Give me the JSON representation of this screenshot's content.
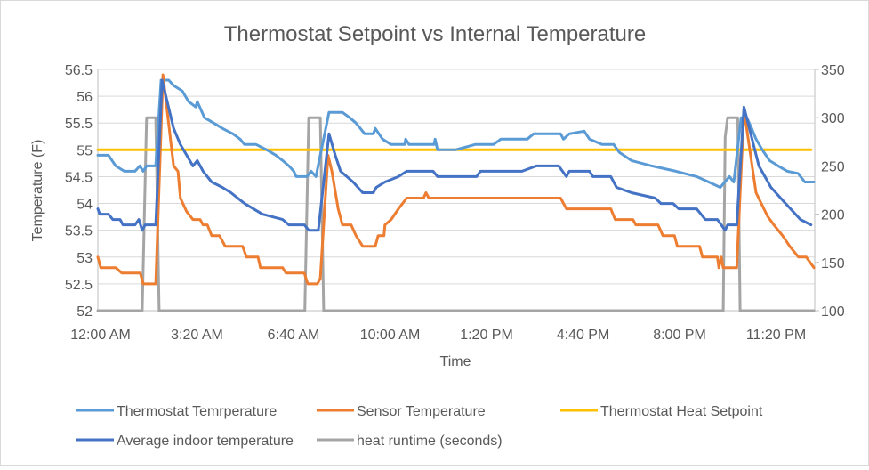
{
  "chart_data": {
    "type": "line",
    "title": "Thermostat Setpoint vs Internal Temperature",
    "xlabel": "Time",
    "ylabel": "Temperature (F)",
    "ylim": [
      52,
      56.5
    ],
    "y2lim": [
      100,
      350
    ],
    "yticks": [
      "52",
      "52.5",
      "53",
      "53.5",
      "54",
      "54.5",
      "55",
      "55.5",
      "56",
      "56.5"
    ],
    "y2ticks": [
      "100",
      "150",
      "200",
      "250",
      "300",
      "350"
    ],
    "xticks": [
      "12:00 AM",
      "3:20 AM",
      "6:40 AM",
      "10:00 AM",
      "1:20 PM",
      "4:40 PM",
      "8:00 PM",
      "11:20 PM"
    ],
    "grid": true,
    "legend_position": "bottom",
    "series": [
      {
        "name": "Thermostat Temrperature",
        "color": "#5B9BD5",
        "axis": "left",
        "points": [
          [
            "00:00",
            54.9
          ],
          [
            "00:22",
            54.9
          ],
          [
            "00:37",
            54.7
          ],
          [
            "00:55",
            54.6
          ],
          [
            "01:17",
            54.6
          ],
          [
            "01:27",
            54.7
          ],
          [
            "01:34",
            54.6
          ],
          [
            "01:41",
            54.7
          ],
          [
            "02:00",
            54.7
          ],
          [
            "02:11",
            56.3
          ],
          [
            "02:27",
            56.3
          ],
          [
            "02:37",
            56.2
          ],
          [
            "02:55",
            56.1
          ],
          [
            "03:08",
            55.9
          ],
          [
            "03:23",
            55.8
          ],
          [
            "03:26",
            55.9
          ],
          [
            "03:41",
            55.6
          ],
          [
            "04:00",
            55.5
          ],
          [
            "04:18",
            55.4
          ],
          [
            "04:40",
            55.3
          ],
          [
            "04:55",
            55.2
          ],
          [
            "05:04",
            55.1
          ],
          [
            "05:28",
            55.1
          ],
          [
            "05:50",
            55.0
          ],
          [
            "06:09",
            54.9
          ],
          [
            "06:23",
            54.8
          ],
          [
            "06:36",
            54.7
          ],
          [
            "06:46",
            54.6
          ],
          [
            "06:51",
            54.5
          ],
          [
            "07:13",
            54.5
          ],
          [
            "07:22",
            54.6
          ],
          [
            "07:32",
            54.5
          ],
          [
            "07:59",
            55.7
          ],
          [
            "08:27",
            55.7
          ],
          [
            "08:42",
            55.6
          ],
          [
            "08:55",
            55.5
          ],
          [
            "09:04",
            55.4
          ],
          [
            "09:13",
            55.3
          ],
          [
            "09:31",
            55.3
          ],
          [
            "09:35",
            55.4
          ],
          [
            "09:50",
            55.2
          ],
          [
            "10:08",
            55.1
          ],
          [
            "10:36",
            55.1
          ],
          [
            "10:38",
            55.2
          ],
          [
            "10:45",
            55.1
          ],
          [
            "11:37",
            55.1
          ],
          [
            "11:39",
            55.2
          ],
          [
            "11:44",
            55.0
          ],
          [
            "12:21",
            55.0
          ],
          [
            "13:02",
            55.1
          ],
          [
            "13:40",
            55.1
          ],
          [
            "13:55",
            55.2
          ],
          [
            "14:50",
            55.2
          ],
          [
            "15:03",
            55.3
          ],
          [
            "15:59",
            55.3
          ],
          [
            "16:05",
            55.2
          ],
          [
            "16:17",
            55.3
          ],
          [
            "16:48",
            55.35
          ],
          [
            "16:59",
            55.2
          ],
          [
            "17:25",
            55.1
          ],
          [
            "17:49",
            55.1
          ],
          [
            "18:01",
            54.95
          ],
          [
            "18:26",
            54.8
          ],
          [
            "19:08",
            54.7
          ],
          [
            "19:58",
            54.6
          ],
          [
            "20:41",
            54.5
          ],
          [
            "21:06",
            54.4
          ],
          [
            "21:30",
            54.3
          ],
          [
            "21:49",
            54.5
          ],
          [
            "21:58",
            54.4
          ],
          [
            "22:13",
            55.6
          ],
          [
            "22:25",
            55.6
          ],
          [
            "22:35",
            55.4
          ],
          [
            "22:44",
            55.2
          ],
          [
            "22:57",
            55.0
          ],
          [
            "23:12",
            54.8
          ],
          [
            "23:30",
            54.7
          ],
          [
            "23:49",
            54.6
          ],
          [
            "24:11",
            54.56
          ],
          [
            "24:25",
            54.4
          ],
          [
            "24:44",
            54.4
          ]
        ]
      },
      {
        "name": "Sensor Temperature",
        "color": "#ED7D31",
        "axis": "left",
        "points": [
          [
            "00:00",
            53.0
          ],
          [
            "00:06",
            52.8
          ],
          [
            "00:37",
            52.8
          ],
          [
            "00:50",
            52.7
          ],
          [
            "01:28",
            52.7
          ],
          [
            "01:34",
            52.5
          ],
          [
            "02:00",
            52.5
          ],
          [
            "02:15",
            56.4
          ],
          [
            "02:37",
            54.7
          ],
          [
            "02:46",
            54.6
          ],
          [
            "02:51",
            54.1
          ],
          [
            "03:04",
            53.85
          ],
          [
            "03:17",
            53.7
          ],
          [
            "03:32",
            53.7
          ],
          [
            "03:38",
            53.6
          ],
          [
            "03:47",
            53.6
          ],
          [
            "03:56",
            53.4
          ],
          [
            "04:12",
            53.4
          ],
          [
            "04:24",
            53.2
          ],
          [
            "05:00",
            53.2
          ],
          [
            "05:08",
            53.0
          ],
          [
            "05:32",
            53.0
          ],
          [
            "05:37",
            52.8
          ],
          [
            "06:23",
            52.8
          ],
          [
            "06:30",
            52.7
          ],
          [
            "07:08",
            52.7
          ],
          [
            "07:15",
            52.5
          ],
          [
            "07:35",
            52.5
          ],
          [
            "07:41",
            52.6
          ],
          [
            "07:57",
            54.9
          ],
          [
            "08:05",
            54.6
          ],
          [
            "08:18",
            53.9
          ],
          [
            "08:27",
            53.6
          ],
          [
            "08:45",
            53.6
          ],
          [
            "08:55",
            53.4
          ],
          [
            "09:09",
            53.2
          ],
          [
            "09:35",
            53.2
          ],
          [
            "09:41",
            53.4
          ],
          [
            "09:53",
            53.4
          ],
          [
            "09:55",
            53.6
          ],
          [
            "10:08",
            53.7
          ],
          [
            "10:23",
            53.9
          ],
          [
            "10:40",
            54.1
          ],
          [
            "11:15",
            54.1
          ],
          [
            "11:20",
            54.2
          ],
          [
            "11:26",
            54.1
          ],
          [
            "15:59",
            54.1
          ],
          [
            "16:11",
            53.9
          ],
          [
            "17:43",
            53.9
          ],
          [
            "17:52",
            53.7
          ],
          [
            "18:29",
            53.7
          ],
          [
            "18:35",
            53.6
          ],
          [
            "19:21",
            53.6
          ],
          [
            "19:31",
            53.4
          ],
          [
            "19:55",
            53.4
          ],
          [
            "20:01",
            53.2
          ],
          [
            "20:47",
            53.2
          ],
          [
            "20:53",
            53.0
          ],
          [
            "21:24",
            53.0
          ],
          [
            "21:27",
            52.8
          ],
          [
            "21:32",
            53.0
          ],
          [
            "21:36",
            52.8
          ],
          [
            "22:04",
            52.8
          ],
          [
            "22:19",
            55.75
          ],
          [
            "22:44",
            54.2
          ],
          [
            "23:08",
            53.76
          ],
          [
            "23:21",
            53.6
          ],
          [
            "23:39",
            53.4
          ],
          [
            "23:54",
            53.2
          ],
          [
            "24:12",
            53.0
          ],
          [
            "24:28",
            53.0
          ],
          [
            "24:44",
            52.8
          ]
        ]
      },
      {
        "name": "Thermostat Heat Setpoint",
        "color": "#FFC000",
        "axis": "left",
        "points": [
          [
            "00:00",
            55.0
          ],
          [
            "24:38",
            55.0
          ]
        ]
      },
      {
        "name": "Average indoor temperature",
        "color": "#4472C4",
        "axis": "left",
        "points": [
          [
            "00:00",
            53.9
          ],
          [
            "00:04",
            53.8
          ],
          [
            "00:22",
            53.8
          ],
          [
            "00:31",
            53.7
          ],
          [
            "00:46",
            53.7
          ],
          [
            "00:52",
            53.6
          ],
          [
            "01:17",
            53.6
          ],
          [
            "01:25",
            53.7
          ],
          [
            "01:32",
            53.5
          ],
          [
            "01:38",
            53.6
          ],
          [
            "02:00",
            53.6
          ],
          [
            "02:13",
            56.3
          ],
          [
            "02:37",
            55.4
          ],
          [
            "02:51",
            55.1
          ],
          [
            "03:17",
            54.7
          ],
          [
            "03:26",
            54.8
          ],
          [
            "03:38",
            54.6
          ],
          [
            "03:56",
            54.4
          ],
          [
            "04:18",
            54.3
          ],
          [
            "04:36",
            54.2
          ],
          [
            "05:04",
            54.0
          ],
          [
            "05:41",
            53.8
          ],
          [
            "06:23",
            53.7
          ],
          [
            "06:36",
            53.6
          ],
          [
            "07:08",
            53.6
          ],
          [
            "07:17",
            53.5
          ],
          [
            "07:37",
            53.5
          ],
          [
            "07:59",
            55.3
          ],
          [
            "08:12",
            54.9
          ],
          [
            "08:23",
            54.6
          ],
          [
            "08:36",
            54.5
          ],
          [
            "08:49",
            54.4
          ],
          [
            "09:09",
            54.2
          ],
          [
            "09:31",
            54.2
          ],
          [
            "09:37",
            54.3
          ],
          [
            "09:55",
            54.4
          ],
          [
            "10:23",
            54.5
          ],
          [
            "10:40",
            54.6
          ],
          [
            "11:35",
            54.6
          ],
          [
            "11:44",
            54.5
          ],
          [
            "13:05",
            54.5
          ],
          [
            "13:13",
            54.6
          ],
          [
            "14:39",
            54.6
          ],
          [
            "15:09",
            54.7
          ],
          [
            "15:55",
            54.7
          ],
          [
            "16:11",
            54.5
          ],
          [
            "16:17",
            54.6
          ],
          [
            "16:59",
            54.6
          ],
          [
            "17:06",
            54.5
          ],
          [
            "17:43",
            54.5
          ],
          [
            "17:55",
            54.3
          ],
          [
            "18:26",
            54.2
          ],
          [
            "19:15",
            54.1
          ],
          [
            "19:27",
            54.0
          ],
          [
            "19:52",
            54.0
          ],
          [
            "20:04",
            53.9
          ],
          [
            "20:41",
            53.9
          ],
          [
            "20:59",
            53.7
          ],
          [
            "21:24",
            53.7
          ],
          [
            "21:40",
            53.5
          ],
          [
            "21:45",
            53.6
          ],
          [
            "22:04",
            53.6
          ],
          [
            "22:19",
            55.8
          ],
          [
            "22:50",
            54.7
          ],
          [
            "23:15",
            54.3
          ],
          [
            "23:39",
            54.06
          ],
          [
            "24:16",
            53.7
          ],
          [
            "24:38",
            53.6
          ]
        ]
      },
      {
        "name": "heat runtime (seconds)",
        "color": "#A5A5A5",
        "axis": "right",
        "points": [
          [
            "00:00",
            100
          ],
          [
            "01:32",
            100
          ],
          [
            "01:41",
            300
          ],
          [
            "02:00",
            300
          ],
          [
            "02:07",
            100
          ],
          [
            "07:09",
            100
          ],
          [
            "07:17",
            300
          ],
          [
            "07:41",
            300
          ],
          [
            "07:48",
            100
          ],
          [
            "21:36",
            100
          ],
          [
            "21:40",
            280
          ],
          [
            "21:45",
            300
          ],
          [
            "22:06",
            300
          ],
          [
            "22:11",
            100
          ],
          [
            "24:44",
            100
          ]
        ]
      }
    ]
  }
}
